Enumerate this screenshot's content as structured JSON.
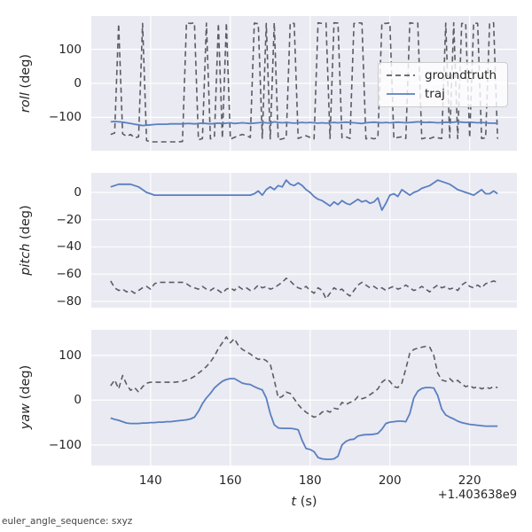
{
  "figure": {
    "footnote": "euler_angle_sequence: sxyz",
    "xlabel": "t (s)",
    "xlabel_var": "t",
    "xlabel_unit": " (s)",
    "x_offset_text": "+1.403638e9",
    "legend": {
      "position": "center right of top subplot",
      "entries": [
        {
          "label": "groundtruth",
          "style": "dashed"
        },
        {
          "label": "traj",
          "style": "solid"
        }
      ]
    },
    "series_styles": {
      "groundtruth": {
        "color": "#595d63",
        "dash": "6 4",
        "width": 1.6
      },
      "traj": {
        "color": "#5a7fc0",
        "dash": "",
        "width": 1.8
      }
    },
    "colors": {
      "figure_bg": "#ffffff",
      "axes_bg": "#eaeaf2",
      "grid": "#ffffff",
      "text": "#262626",
      "groundtruth": "#595d63",
      "traj": "#5a7fc0"
    }
  },
  "chart_data": [
    {
      "type": "line",
      "ylabel": "roll (deg)",
      "ylabel_var": "roll",
      "ylabel_unit": " (deg)",
      "xlim": [
        125.15,
        231.85
      ],
      "ylim": [
        -198,
        198
      ],
      "xticks": [
        140,
        160,
        180,
        200,
        220
      ],
      "yticks": [
        100,
        0,
        -100
      ],
      "show_xtick_labels": false,
      "grid": true,
      "x": [
        130,
        131,
        132,
        133,
        134,
        135,
        136,
        137,
        138,
        139,
        140,
        141,
        142,
        143,
        144,
        145,
        146,
        147,
        148,
        149,
        150,
        151,
        152,
        153,
        154,
        155,
        156,
        157,
        158,
        159,
        160,
        161,
        162,
        163,
        164,
        165,
        166,
        167,
        168,
        169,
        170,
        171,
        172,
        173,
        174,
        175,
        176,
        177,
        178,
        179,
        180,
        181,
        182,
        183,
        184,
        185,
        186,
        187,
        188,
        189,
        190,
        191,
        192,
        193,
        194,
        195,
        196,
        197,
        198,
        199,
        200,
        201,
        202,
        203,
        204,
        205,
        206,
        207,
        208,
        209,
        210,
        211,
        212,
        213,
        214,
        215,
        216,
        217,
        218,
        219,
        220,
        221,
        222,
        223,
        224,
        225,
        226,
        227
      ],
      "series": [
        {
          "name": "groundtruth",
          "values": [
            -150,
            -146,
            175,
            -148,
            -156,
            -150,
            -160,
            -157,
            176,
            -168,
            -172,
            -172,
            -172,
            -172,
            -172,
            -172,
            -172,
            -172,
            -171,
            178,
            176,
            178,
            -166,
            -162,
            177,
            -163,
            -158,
            176,
            -161,
            178,
            -164,
            -159,
            -154,
            -150,
            -154,
            -159,
            177,
            175,
            -161,
            176,
            -163,
            178,
            -166,
            -163,
            -160,
            177,
            176,
            -162,
            -157,
            -154,
            -159,
            -163,
            178,
            176,
            177,
            -162,
            178,
            177,
            -160,
            -157,
            -162,
            176,
            178,
            177,
            -163,
            -160,
            -163,
            -159,
            177,
            176,
            178,
            -162,
            -159,
            -157,
            -162,
            178,
            176,
            177,
            -163,
            -160,
            -162,
            -158,
            -160,
            -162,
            177,
            -160,
            178,
            -162,
            176,
            177,
            -160,
            178,
            176,
            -162,
            -160,
            177,
            178,
            -163
          ]
        },
        {
          "name": "traj",
          "values": [
            -113,
            -112,
            -113,
            -114,
            -116,
            -118,
            -120,
            -122,
            -124,
            -123,
            -122,
            -121,
            -120,
            -120,
            -120,
            -119,
            -119,
            -119,
            -119,
            -118,
            -118,
            -119,
            -118,
            -117,
            -118,
            -119,
            -118,
            -117,
            -118,
            -117,
            -116,
            -118,
            -117,
            -116,
            -117,
            -118,
            -117,
            -116,
            -115,
            -116,
            -117,
            -113,
            -115,
            -116,
            -115,
            -116,
            -117,
            -116,
            -115,
            -116,
            -115,
            -116,
            -117,
            -116,
            -117,
            -116,
            -115,
            -116,
            -115,
            -114,
            -115,
            -116,
            -117,
            -118,
            -116,
            -115,
            -114,
            -115,
            -116,
            -115,
            -116,
            -115,
            -114,
            -115,
            -116,
            -115,
            -114,
            -113,
            -114,
            -115,
            -114,
            -115,
            -116,
            -115,
            -114,
            -115,
            -114,
            -113,
            -114,
            -115,
            -114,
            -115,
            -116,
            -115,
            -116,
            -117,
            -117,
            -118
          ]
        }
      ]
    },
    {
      "type": "line",
      "ylabel": "pitch (deg)",
      "ylabel_var": "pitch",
      "ylabel_unit": " (deg)",
      "xlim": [
        125.15,
        231.85
      ],
      "ylim": [
        -84.6,
        14.3
      ],
      "xticks": [
        140,
        160,
        180,
        200,
        220
      ],
      "yticks": [
        0,
        -20,
        -40,
        -60,
        -80
      ],
      "show_xtick_labels": false,
      "grid": true,
      "x": [
        130,
        131,
        132,
        133,
        134,
        135,
        136,
        137,
        138,
        139,
        140,
        141,
        142,
        143,
        144,
        145,
        146,
        147,
        148,
        149,
        150,
        151,
        152,
        153,
        154,
        155,
        156,
        157,
        158,
        159,
        160,
        161,
        162,
        163,
        164,
        165,
        166,
        167,
        168,
        169,
        170,
        171,
        172,
        173,
        174,
        175,
        176,
        177,
        178,
        179,
        180,
        181,
        182,
        183,
        184,
        185,
        186,
        187,
        188,
        189,
        190,
        191,
        192,
        193,
        194,
        195,
        196,
        197,
        198,
        199,
        200,
        201,
        202,
        203,
        204,
        205,
        206,
        207,
        208,
        209,
        210,
        211,
        212,
        213,
        214,
        215,
        216,
        217,
        218,
        219,
        220,
        221,
        222,
        223,
        224,
        225,
        226,
        227
      ],
      "series": [
        {
          "name": "groundtruth",
          "values": [
            -65,
            -70,
            -72,
            -71,
            -73,
            -72,
            -74,
            -72,
            -70,
            -69,
            -71,
            -67,
            -66,
            -66,
            -66,
            -66,
            -66,
            -66,
            -66,
            -67,
            -69,
            -70,
            -71,
            -69,
            -71,
            -72,
            -70,
            -72,
            -74,
            -71,
            -70,
            -72,
            -69,
            -71,
            -70,
            -72,
            -71,
            -68,
            -70,
            -69,
            -71,
            -70,
            -68,
            -66,
            -63,
            -65,
            -68,
            -70,
            -71,
            -69,
            -72,
            -74,
            -70,
            -72,
            -78,
            -74,
            -70,
            -72,
            -71,
            -74,
            -76,
            -72,
            -68,
            -66,
            -68,
            -70,
            -69,
            -71,
            -70,
            -72,
            -70,
            -69,
            -71,
            -70,
            -68,
            -70,
            -72,
            -71,
            -69,
            -71,
            -73,
            -70,
            -68,
            -70,
            -69,
            -71,
            -70,
            -72,
            -68,
            -66,
            -69,
            -70,
            -68,
            -70,
            -67,
            -66,
            -65,
            -66
          ]
        },
        {
          "name": "traj",
          "values": [
            4,
            5,
            6,
            6,
            6,
            6,
            5,
            4,
            2,
            0,
            -1,
            -2,
            -2,
            -2,
            -2,
            -2,
            -2,
            -2,
            -2,
            -2,
            -2,
            -2,
            -2,
            -2,
            -2,
            -2,
            -2,
            -2,
            -2,
            -2,
            -2,
            -2,
            -2,
            -2,
            -2,
            -2,
            -1,
            1,
            -2,
            2,
            4,
            2,
            5,
            4,
            9,
            6,
            5,
            7,
            5,
            2,
            0,
            -3,
            -5,
            -6,
            -8,
            -10,
            -7,
            -9,
            -6,
            -8,
            -9,
            -7,
            -5,
            -7,
            -6,
            -8,
            -7,
            -4,
            -13,
            -8,
            -2,
            -1,
            -3,
            2,
            0,
            -2,
            0,
            1,
            3,
            4,
            5,
            7,
            9,
            8,
            7,
            6,
            4,
            2,
            1,
            0,
            -1,
            -2,
            0,
            2,
            -1,
            -1,
            1,
            -1
          ]
        }
      ]
    },
    {
      "type": "line",
      "ylabel": "yaw (deg)",
      "ylabel_var": "yaw",
      "ylabel_unit": " (deg)",
      "xlabel": "t (s)",
      "xlim": [
        125.15,
        231.85
      ],
      "ylim": [
        -145.8,
        156.8
      ],
      "xticks": [
        140,
        160,
        180,
        200,
        220
      ],
      "yticks": [
        100,
        0,
        -100
      ],
      "show_xtick_labels": true,
      "grid": true,
      "x": [
        130,
        131,
        132,
        133,
        134,
        135,
        136,
        137,
        138,
        139,
        140,
        141,
        142,
        143,
        144,
        145,
        146,
        147,
        148,
        149,
        150,
        151,
        152,
        153,
        154,
        155,
        156,
        157,
        158,
        159,
        160,
        161,
        162,
        163,
        164,
        165,
        166,
        167,
        168,
        169,
        170,
        171,
        172,
        173,
        174,
        175,
        176,
        177,
        178,
        179,
        180,
        181,
        182,
        183,
        184,
        185,
        186,
        187,
        188,
        189,
        190,
        191,
        192,
        193,
        194,
        195,
        196,
        197,
        198,
        199,
        200,
        201,
        202,
        203,
        204,
        205,
        206,
        207,
        208,
        209,
        210,
        211,
        212,
        213,
        214,
        215,
        216,
        217,
        218,
        219,
        220,
        221,
        222,
        223,
        224,
        225,
        226,
        227
      ],
      "series": [
        {
          "name": "groundtruth",
          "values": [
            32,
            45,
            25,
            55,
            35,
            22,
            28,
            18,
            30,
            38,
            40,
            40,
            40,
            40,
            40,
            40,
            40,
            41,
            42,
            45,
            48,
            53,
            60,
            67,
            75,
            85,
            98,
            115,
            128,
            141,
            128,
            137,
            122,
            113,
            108,
            103,
            96,
            91,
            93,
            88,
            80,
            45,
            5,
            8,
            18,
            15,
            3,
            -10,
            -20,
            -27,
            -33,
            -38,
            -35,
            -27,
            -23,
            -27,
            -18,
            -20,
            -5,
            -10,
            -5,
            -2,
            8,
            3,
            6,
            12,
            18,
            25,
            40,
            47,
            42,
            30,
            28,
            38,
            70,
            105,
            113,
            116,
            118,
            120,
            118,
            100,
            60,
            45,
            42,
            48,
            40,
            44,
            36,
            30,
            33,
            27,
            30,
            25,
            29,
            26,
            30,
            28
          ]
        },
        {
          "name": "traj",
          "values": [
            -40,
            -43,
            -45,
            -48,
            -51,
            -52,
            -52,
            -52,
            -51,
            -51,
            -50,
            -50,
            -49,
            -49,
            -48,
            -48,
            -47,
            -46,
            -45,
            -44,
            -42,
            -38,
            -25,
            -8,
            5,
            15,
            27,
            35,
            42,
            46,
            48,
            48,
            43,
            38,
            36,
            35,
            30,
            26,
            23,
            5,
            -30,
            -55,
            -62,
            -63,
            -63,
            -63,
            -64,
            -66,
            -90,
            -108,
            -110,
            -115,
            -128,
            -131,
            -132,
            -132,
            -131,
            -125,
            -100,
            -92,
            -88,
            -87,
            -80,
            -78,
            -77,
            -77,
            -76,
            -74,
            -65,
            -52,
            -49,
            -48,
            -47,
            -47,
            -48,
            -30,
            5,
            20,
            26,
            28,
            28,
            27,
            10,
            -20,
            -33,
            -38,
            -42,
            -47,
            -50,
            -52,
            -54,
            -55,
            -56,
            -57,
            -58,
            -58,
            -58,
            -58
          ]
        }
      ]
    }
  ]
}
